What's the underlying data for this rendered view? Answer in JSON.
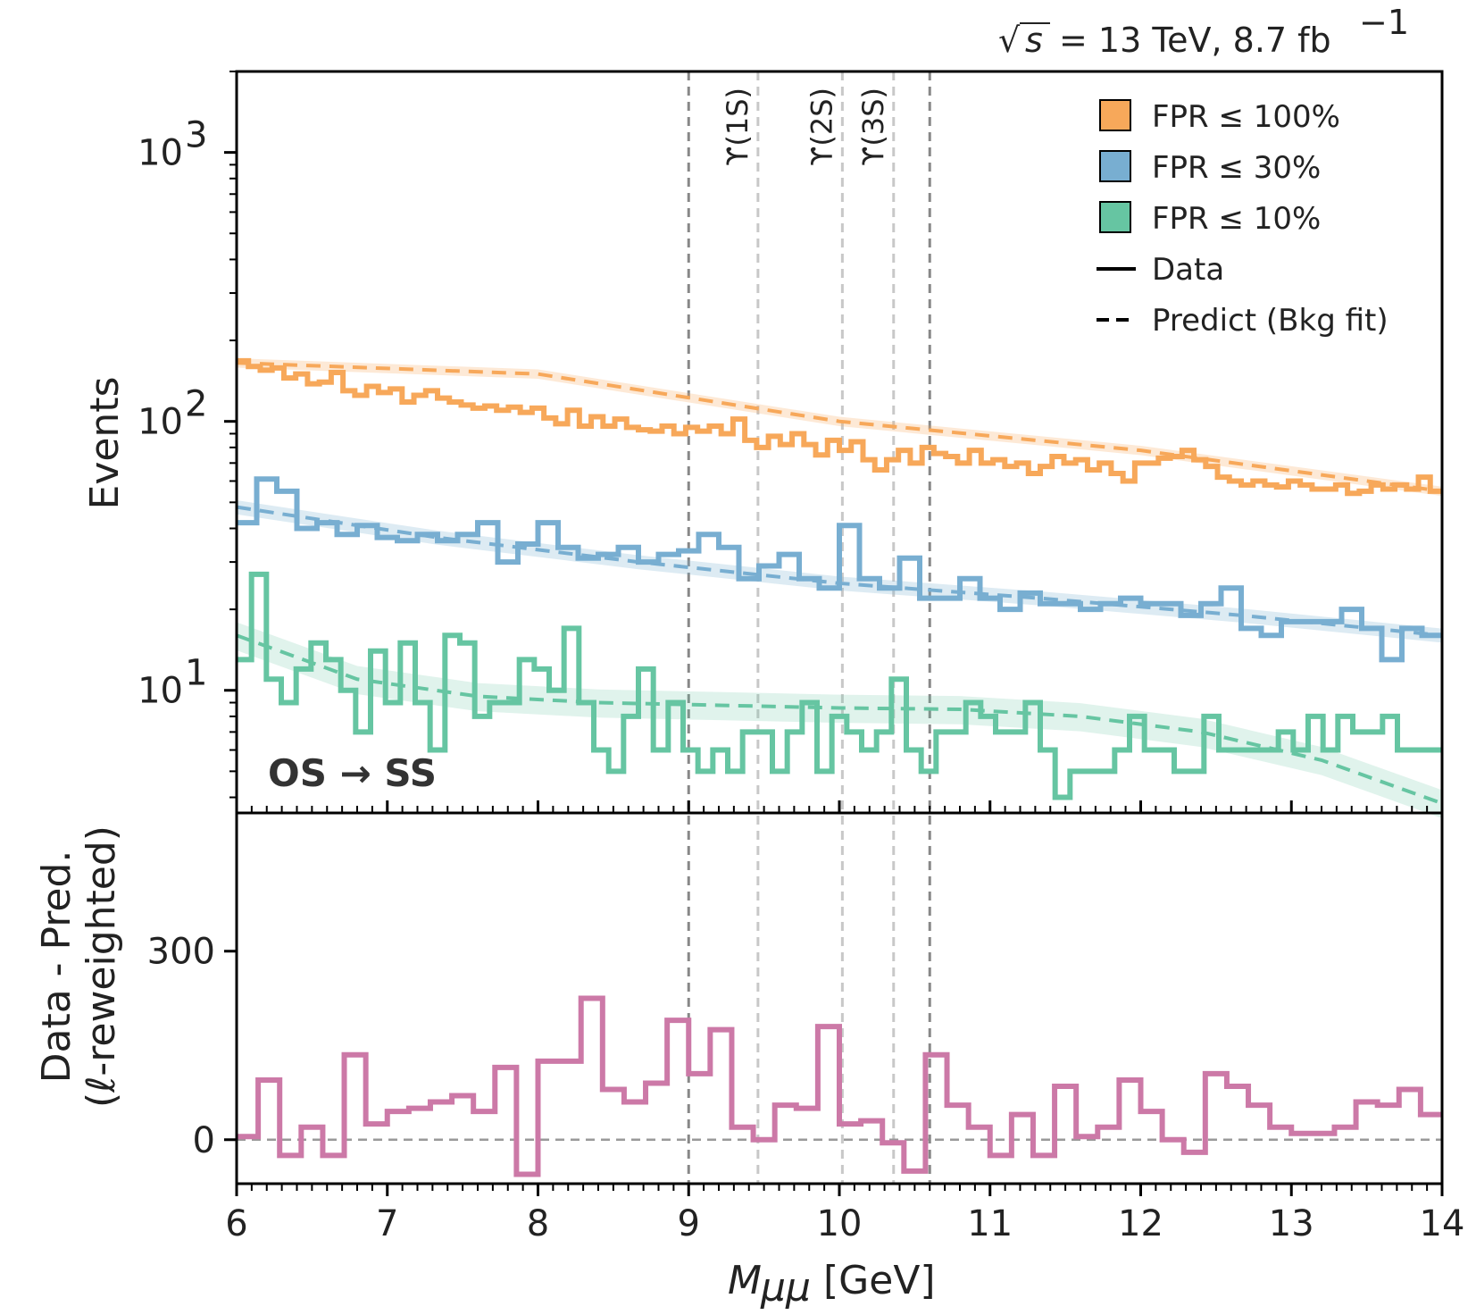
{
  "header": {
    "sqrt": "√",
    "s_var": "s",
    "energy_text": "= 13 TeV,  8.7 fb",
    "lumi_exp": "−1"
  },
  "region_label": "OS → SS",
  "resonances": [
    {
      "label": "ϒ(1S)",
      "x": 9.46
    },
    {
      "label": "ϒ(2S)",
      "x": 10.02
    },
    {
      "label": "ϒ(3S)",
      "x": 10.36
    }
  ],
  "signal_window": [
    9.0,
    10.6
  ],
  "legend": {
    "entries": [
      {
        "label": "FPR ≤ 100%",
        "color": "#f7a85a",
        "kind": "box"
      },
      {
        "label": "FPR ≤ 30%",
        "color": "#78aed1",
        "kind": "box"
      },
      {
        "label": "FPR ≤ 10%",
        "color": "#66c5a2",
        "kind": "box"
      },
      {
        "label": "Data",
        "color": "#000000",
        "kind": "solid"
      },
      {
        "label": "Predict (Bkg fit)",
        "color": "#000000",
        "kind": "dashed"
      }
    ]
  },
  "chart_data": [
    {
      "type": "line",
      "panel": "top",
      "ylabel": "Events",
      "yscale": "log",
      "xlim": [
        6,
        14
      ],
      "ylim": [
        3.5,
        2000
      ],
      "yticks": [
        10,
        100,
        1000
      ],
      "ytick_labels": [
        {
          "base": "10",
          "exp": "1"
        },
        {
          "base": "10",
          "exp": "2"
        },
        {
          "base": "10",
          "exp": "3"
        }
      ],
      "bin_edges_start": 6.0,
      "bin_width": 0.1,
      "series": [
        {
          "name": "FPR ≤ 100%",
          "color": "#f7a85a",
          "values": [
            168,
            160,
            155,
            158,
            145,
            150,
            138,
            140,
            152,
            130,
            125,
            135,
            128,
            132,
            118,
            125,
            130,
            122,
            118,
            115,
            112,
            114,
            110,
            113,
            108,
            112,
            103,
            98,
            110,
            96,
            104,
            96,
            102,
            95,
            93,
            92,
            96,
            90,
            95,
            92,
            96,
            90,
            102,
            85,
            80,
            88,
            82,
            90,
            82,
            75,
            85,
            78,
            84,
            72,
            66,
            72,
            78,
            70,
            80,
            76,
            74,
            70,
            78,
            70,
            72,
            68,
            70,
            64,
            68,
            74,
            70,
            72,
            66,
            70,
            64,
            60,
            70,
            70,
            73,
            74,
            78,
            72,
            68,
            62,
            60,
            58,
            60,
            58,
            57,
            60,
            58,
            56,
            56,
            58,
            54,
            55,
            58,
            56,
            58,
            56,
            62,
            55
          ]
        },
        {
          "name": "FPR ≤ 100% (bkg fit)",
          "color": "#f7a85a",
          "values": [
            165,
            150,
            100,
            78,
            55
          ]
        },
        {
          "name": "FPR ≤ 30%",
          "color": "#78aed1",
          "values": [
            42,
            61,
            55,
            40,
            42,
            38,
            41,
            37,
            36,
            38,
            36,
            38,
            42,
            30,
            35,
            42,
            34,
            31,
            32,
            34,
            30,
            32,
            33,
            38,
            34,
            26,
            29,
            32,
            26,
            24,
            41,
            26,
            24,
            31,
            22,
            22,
            26,
            22,
            20,
            23,
            21,
            21,
            20,
            21,
            22,
            21,
            21,
            19,
            21,
            24,
            17,
            16,
            18,
            18,
            18,
            20,
            17,
            13,
            17,
            16
          ],
          "fit_values": [
            48,
            37,
            30,
            25,
            22,
            19,
            16
          ]
        },
        {
          "name": "FPR ≤ 10%",
          "color": "#66c5a2",
          "values": [
            13,
            27,
            11,
            9,
            12,
            15,
            13,
            10,
            7,
            14,
            9,
            15,
            9,
            6,
            16,
            15,
            8,
            9,
            9,
            13,
            12,
            10,
            17,
            9,
            6,
            5,
            8,
            12,
            6,
            9,
            6,
            5,
            6,
            5,
            7,
            7,
            5,
            7,
            9,
            5,
            8,
            7,
            6,
            7,
            11,
            6,
            5,
            7,
            7,
            9,
            8,
            7,
            7,
            9,
            6,
            4,
            5,
            5,
            5,
            6,
            8,
            6,
            6,
            5,
            5,
            8,
            6,
            6,
            6,
            6,
            7,
            6,
            8,
            6,
            8,
            7,
            7,
            8,
            6,
            6,
            6
          ]
        }
      ]
    },
    {
      "type": "line",
      "panel": "bottom",
      "xlabel": "M_μμ [GeV]",
      "ylabel_line1": "Data - Pred.",
      "ylabel_line2": "(ℓ-reweighted)",
      "xlim": [
        6,
        14
      ],
      "ylim": [
        -70,
        520
      ],
      "yticks": [
        0,
        300
      ],
      "xticks": [
        6,
        7,
        8,
        9,
        10,
        11,
        12,
        13,
        14
      ],
      "series": [
        {
          "name": "residual",
          "color": "#cc79a7",
          "values": [
            5,
            95,
            -25,
            20,
            -25,
            135,
            25,
            45,
            50,
            60,
            70,
            45,
            115,
            -55,
            125,
            125,
            225,
            80,
            60,
            90,
            190,
            105,
            175,
            20,
            0,
            55,
            50,
            180,
            25,
            30,
            -5,
            -50,
            135,
            55,
            20,
            -25,
            40,
            -25,
            85,
            5,
            20,
            95,
            45,
            0,
            -20,
            105,
            85,
            55,
            20,
            10,
            10,
            20,
            60,
            55,
            80,
            40
          ]
        }
      ]
    }
  ]
}
